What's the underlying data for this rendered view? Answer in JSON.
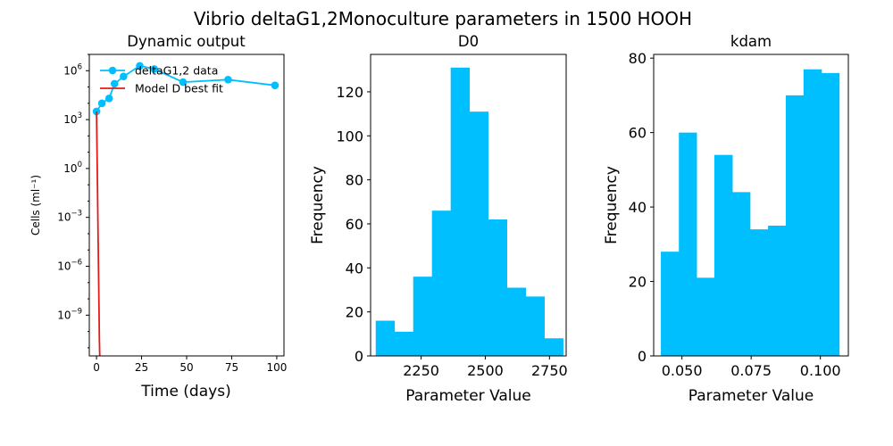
{
  "figure": {
    "suptitle": "Vibrio deltaG1,2Monoculture parameters in 1500 HOOH"
  },
  "colors": {
    "data": "#00bfff",
    "model": "#e31a1c",
    "hist": "#00bfff",
    "axis": "#000000"
  },
  "chart_data": [
    {
      "type": "line",
      "title": "Dynamic output",
      "xlabel": "Time (days)",
      "ylabel": "Cells (ml⁻¹)",
      "yscale": "log",
      "xlim": [
        -4,
        104
      ],
      "ylim_log10": [
        -11.5,
        7.0
      ],
      "xticks": [
        0,
        25,
        50,
        75,
        100
      ],
      "yticks_exp": [
        6,
        3,
        0,
        -3,
        -6,
        -9
      ],
      "legend": {
        "placement": "top-left",
        "entries": [
          "deltaG1,2 data",
          "Model D best fit"
        ]
      },
      "series": [
        {
          "name": "deltaG1,2 data",
          "marker": "circle",
          "x": [
            0,
            3,
            7,
            10,
            15,
            24,
            32,
            48,
            73,
            99
          ],
          "log10_y": [
            3.5,
            4.0,
            4.3,
            5.2,
            5.65,
            6.3,
            6.1,
            5.3,
            5.45,
            5.1
          ]
        },
        {
          "name": "Model D best fit",
          "marker": "none",
          "x": [
            0,
            0.4,
            0.8,
            1.2,
            1.6,
            2.0
          ],
          "log10_y": [
            3.5,
            0.0,
            -3.5,
            -7.0,
            -10.5,
            -12.5
          ]
        }
      ]
    },
    {
      "type": "bar",
      "title": "D0",
      "xlabel": "Parameter Value",
      "ylabel": "Frequency",
      "xlim": [
        2053,
        2815
      ],
      "ylim": [
        0,
        137
      ],
      "xticks": [
        2250,
        2500,
        2750
      ],
      "yticks": [
        0,
        20,
        40,
        60,
        80,
        100,
        120
      ],
      "bin_edges": [
        2073,
        2146,
        2219,
        2292,
        2365,
        2438,
        2511,
        2584,
        2657,
        2730,
        2803
      ],
      "values": [
        16,
        11,
        36,
        66,
        131,
        111,
        62,
        31,
        27,
        8
      ]
    },
    {
      "type": "bar",
      "title": "kdam",
      "xlabel": "Parameter Value",
      "ylabel": "Frequency",
      "xlim": [
        0.0398,
        0.1101
      ],
      "ylim": [
        0,
        81
      ],
      "xticks": [
        0.05,
        0.075,
        0.1
      ],
      "yticks": [
        0,
        20,
        40,
        60,
        80
      ],
      "bin_edges": [
        0.0424,
        0.0489,
        0.0553,
        0.0617,
        0.0682,
        0.0746,
        0.0811,
        0.0875,
        0.0939,
        0.1004,
        0.1068
      ],
      "values": [
        28,
        60,
        21,
        54,
        44,
        34,
        35,
        70,
        77,
        76
      ]
    }
  ]
}
